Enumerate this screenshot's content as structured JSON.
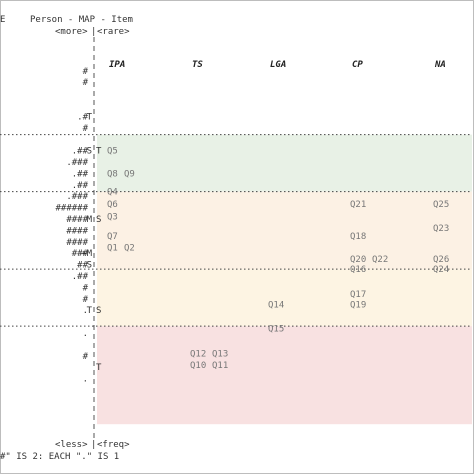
{
  "chart_data": {
    "type": "wright-map",
    "header": {
      "left_cut": "E",
      "title": "Person - MAP - Item",
      "top_left": "<more>",
      "top_right": "<rare>",
      "bottom_left": "<less>",
      "bottom_right": "<freq>",
      "footnote": "#\" IS 2: EACH \".\" IS 1"
    },
    "columns": [
      "IPA",
      "TS",
      "LGA",
      "CP",
      "NA"
    ],
    "bands": [
      {
        "name": "band-1",
        "row_start": 7.6,
        "row_end": 12.6,
        "color": "#e8f1e6"
      },
      {
        "name": "band-2",
        "row_start": 12.6,
        "row_end": 19.4,
        "color": "#fcf1e4"
      },
      {
        "name": "band-3",
        "row_start": 19.4,
        "row_end": 24.4,
        "color": "#fdf4e3"
      },
      {
        "name": "band-4",
        "row_start": 24.4,
        "row_end": 33.0,
        "color": "#f8e1e1"
      }
    ],
    "dotted_lines": [
      7.6,
      12.6,
      19.4,
      24.4
    ],
    "axis_marks": [
      {
        "row": 6.0,
        "left": "T",
        "right": ""
      },
      {
        "row": 9.0,
        "left": "S",
        "right": "T"
      },
      {
        "row": 15.0,
        "left": "M",
        "right": "S"
      },
      {
        "row": 18.0,
        "left": "+M",
        "right": ""
      },
      {
        "row": 19.0,
        "left": "S",
        "right": ""
      },
      {
        "row": 23.0,
        "left": "T",
        "right": "S"
      },
      {
        "row": 28.0,
        "left": "",
        "right": "T"
      }
    ],
    "persons": [
      {
        "row": 2,
        "marks": "#"
      },
      {
        "row": 3,
        "marks": "#"
      },
      {
        "row": 6,
        "marks": ".#"
      },
      {
        "row": 7,
        "marks": "#"
      },
      {
        "row": 9,
        "marks": ".##"
      },
      {
        "row": 10,
        "marks": ".###"
      },
      {
        "row": 11,
        "marks": ".##"
      },
      {
        "row": 12,
        "marks": ".##"
      },
      {
        "row": 13,
        "marks": ".###"
      },
      {
        "row": 14,
        "marks": "######"
      },
      {
        "row": 15,
        "marks": "####"
      },
      {
        "row": 16,
        "marks": "####"
      },
      {
        "row": 17,
        "marks": "####"
      },
      {
        "row": 18,
        "marks": "###"
      },
      {
        "row": 19,
        "marks": "##"
      },
      {
        "row": 20,
        "marks": ".##"
      },
      {
        "row": 21,
        "marks": "#"
      },
      {
        "row": 22,
        "marks": "#"
      },
      {
        "row": 23,
        "marks": "."
      },
      {
        "row": 25,
        "marks": "."
      },
      {
        "row": 27,
        "marks": "#"
      },
      {
        "row": 29,
        "marks": "."
      }
    ],
    "items": [
      {
        "label": "Q5",
        "column": "IPA",
        "row": 9.0,
        "slot": 0
      },
      {
        "label": "Q8",
        "column": "IPA",
        "row": 11.0,
        "slot": 0
      },
      {
        "label": "Q9",
        "column": "IPA",
        "row": 11.0,
        "slot": 1
      },
      {
        "label": "Q4",
        "column": "IPA",
        "row": 12.6,
        "slot": 0
      },
      {
        "label": "Q6",
        "column": "IPA",
        "row": 13.7,
        "slot": 0
      },
      {
        "label": "Q3",
        "column": "IPA",
        "row": 14.8,
        "slot": 0
      },
      {
        "label": "Q7",
        "column": "IPA",
        "row": 16.5,
        "slot": 0
      },
      {
        "label": "Q1",
        "column": "IPA",
        "row": 17.5,
        "slot": 0
      },
      {
        "label": "Q2",
        "column": "IPA",
        "row": 17.5,
        "slot": 1
      },
      {
        "label": "Q12",
        "column": "TS",
        "row": 26.8,
        "slot": 0
      },
      {
        "label": "Q13",
        "column": "TS",
        "row": 26.8,
        "slot": 1
      },
      {
        "label": "Q10",
        "column": "TS",
        "row": 27.8,
        "slot": 0
      },
      {
        "label": "Q11",
        "column": "TS",
        "row": 27.8,
        "slot": 1
      },
      {
        "label": "Q14",
        "column": "LGA",
        "row": 22.5,
        "slot": 0
      },
      {
        "label": "Q15",
        "column": "LGA",
        "row": 24.6,
        "slot": 0
      },
      {
        "label": "Q21",
        "column": "CP",
        "row": 13.7,
        "slot": 0
      },
      {
        "label": "Q18",
        "column": "CP",
        "row": 16.5,
        "slot": 0
      },
      {
        "label": "Q20",
        "column": "CP",
        "row": 18.5,
        "slot": 0
      },
      {
        "label": "Q22",
        "column": "CP",
        "row": 18.5,
        "slot": 1
      },
      {
        "label": "Q16",
        "column": "CP",
        "row": 19.4,
        "slot": 0
      },
      {
        "label": "Q17",
        "column": "CP",
        "row": 21.6,
        "slot": 0
      },
      {
        "label": "Q19",
        "column": "CP",
        "row": 22.5,
        "slot": 0
      },
      {
        "label": "Q25",
        "column": "NA",
        "row": 13.7,
        "slot": 0
      },
      {
        "label": "Q23",
        "column": "NA",
        "row": 15.8,
        "slot": 0
      },
      {
        "label": "Q26",
        "column": "NA",
        "row": 18.5,
        "slot": 0
      },
      {
        "label": "Q24",
        "column": "NA",
        "row": 19.4,
        "slot": 0
      }
    ]
  }
}
